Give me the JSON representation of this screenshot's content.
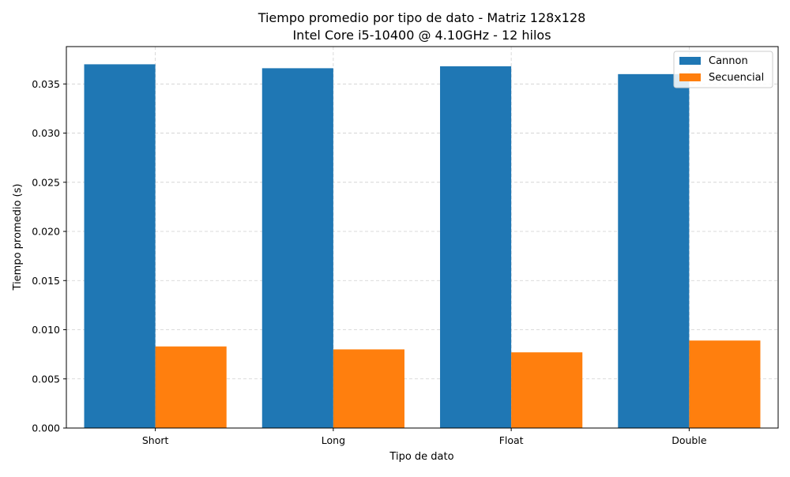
{
  "chart_data": {
    "type": "bar",
    "title": "Tiempo promedio por tipo de dato - Matriz 128x128",
    "subtitle": "Intel Core i5-10400 @ 4.10GHz - 12 hilos",
    "xlabel": "Tipo de dato",
    "ylabel": "Tiempo promedio (s)",
    "categories": [
      "Short",
      "Long",
      "Float",
      "Double"
    ],
    "series": [
      {
        "name": "Cannon",
        "color": "#1f77b4",
        "values": [
          0.037,
          0.0366,
          0.0368,
          0.036
        ]
      },
      {
        "name": "Secuencial",
        "color": "#ff7f0e",
        "values": [
          0.0083,
          0.008,
          0.0077,
          0.0089
        ]
      }
    ],
    "ylim": [
      0,
      0.0388
    ],
    "yticks": [
      "0.000",
      "0.005",
      "0.010",
      "0.015",
      "0.020",
      "0.025",
      "0.030",
      "0.035"
    ],
    "grid": true,
    "legend_position": "top-right"
  }
}
